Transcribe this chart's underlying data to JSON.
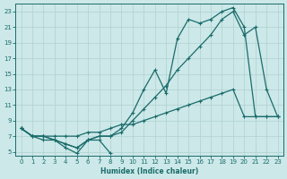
{
  "xlabel": "Humidex (Indice chaleur)",
  "bg_color": "#cce8e8",
  "grid_color": "#b0d0d0",
  "line_color": "#1a6b6b",
  "xlim": [
    -0.5,
    23.5
  ],
  "ylim": [
    4.5,
    24
  ],
  "x_ticks": [
    0,
    1,
    2,
    3,
    4,
    5,
    6,
    7,
    8,
    9,
    10,
    11,
    12,
    13,
    14,
    15,
    16,
    17,
    18,
    19,
    20,
    21,
    22,
    23
  ],
  "y_ticks": [
    5,
    7,
    9,
    11,
    13,
    15,
    17,
    19,
    21,
    23
  ],
  "line_top_x": [
    0,
    1,
    2,
    3,
    4,
    5,
    6,
    7,
    8,
    9,
    10,
    11,
    12,
    13,
    14,
    15,
    16,
    17,
    18,
    19,
    20,
    21,
    22,
    23
  ],
  "line_top_y": [
    8,
    7,
    7,
    6.5,
    6,
    5.5,
    6.5,
    7,
    7,
    8,
    10,
    13,
    15.5,
    12.5,
    19.5,
    22,
    21.5,
    22,
    23,
    23.5,
    21,
    9.5,
    9.5,
    9.5
  ],
  "line_mid_x": [
    0,
    1,
    2,
    3,
    4,
    5,
    6,
    7,
    8,
    9,
    10,
    11,
    12,
    13,
    14,
    15,
    16,
    17,
    18,
    19,
    20,
    21,
    22,
    23
  ],
  "line_mid_y": [
    8,
    7,
    7,
    6.5,
    6,
    5.5,
    6.5,
    7,
    7,
    7.5,
    9,
    10.5,
    12,
    13.5,
    15.5,
    17,
    18.5,
    20,
    22,
    23,
    20,
    21,
    13,
    9.5
  ],
  "line_low_x": [
    0,
    1,
    2,
    3,
    4,
    5,
    6,
    7,
    8,
    9,
    10,
    11,
    12,
    13,
    14,
    15,
    16,
    17,
    18,
    19,
    20,
    21,
    22,
    23
  ],
  "line_low_y": [
    8,
    7,
    7,
    7,
    7,
    7,
    7.5,
    7.5,
    8,
    8.5,
    8.5,
    9,
    9.5,
    10,
    10.5,
    11,
    11.5,
    12,
    12.5,
    13,
    9.5,
    9.5,
    9.5,
    9.5
  ],
  "line_bot_x": [
    0,
    1,
    2,
    3,
    4,
    5,
    6,
    7,
    8
  ],
  "line_bot_y": [
    8,
    7,
    6.5,
    6.5,
    5.5,
    4.8,
    6.5,
    6.5,
    4.8
  ]
}
